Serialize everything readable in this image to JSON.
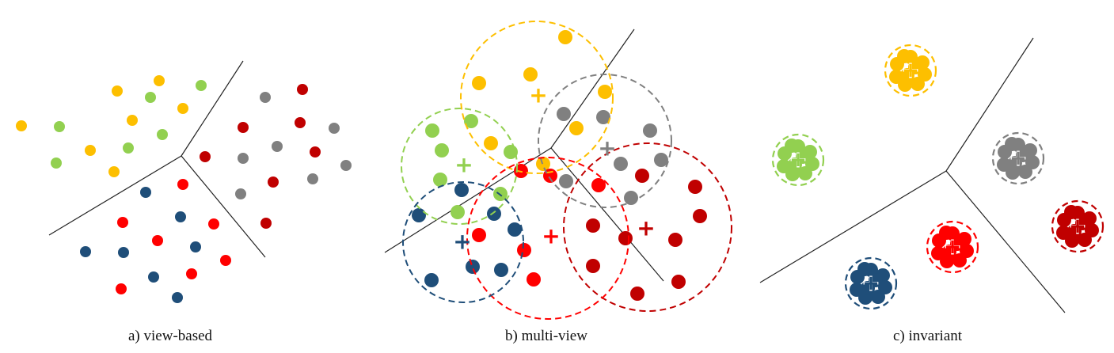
{
  "colors": {
    "yellow": "#FDBF00",
    "lightgreen": "#92D050",
    "gray": "#808080",
    "darkred": "#C00000",
    "red": "#FF0000",
    "navy": "#1F4E79",
    "line": "#222222"
  },
  "panels": [
    {
      "id": "a",
      "caption": "a) view-based"
    },
    {
      "id": "b",
      "caption": "b) multi-view"
    },
    {
      "id": "c",
      "caption": "c) invariant"
    }
  ],
  "centroid_marker": "+"
}
